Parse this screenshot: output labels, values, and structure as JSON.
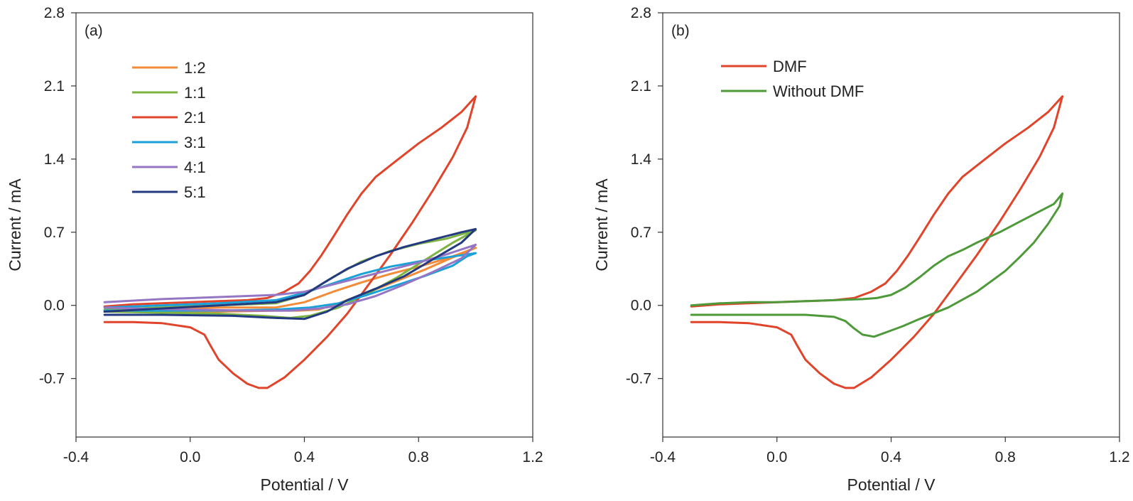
{
  "colors": {
    "orange": "#F28C38",
    "green": "#7CB342",
    "red": "#E0452C",
    "cyan": "#1BA1D8",
    "purple": "#9576C4",
    "navy": "#233A80",
    "darkgreen": "#4E9A3A"
  },
  "chart_data": [
    {
      "type": "line",
      "panel_label": "(a)",
      "xlabel": "Potential / V",
      "ylabel": "Current / mA",
      "xlim": [
        -0.4,
        1.2
      ],
      "ylim": [
        -1.26,
        2.8
      ],
      "xticks": [
        "-0.4",
        "0.0",
        "0.4",
        "0.8",
        "1.2"
      ],
      "yticks": [
        "-0.7",
        "0.0",
        "0.7",
        "1.4",
        "2.1",
        "2.8"
      ],
      "grid": false,
      "legend_position": "top-left",
      "series": [
        {
          "name": "1:2",
          "color_key": "orange",
          "points": [
            [
              -0.3,
              -0.05
            ],
            [
              -0.1,
              -0.03
            ],
            [
              0.1,
              -0.02
            ],
            [
              0.3,
              -0.02
            ],
            [
              0.4,
              0.03
            ],
            [
              0.5,
              0.13
            ],
            [
              0.6,
              0.22
            ],
            [
              0.7,
              0.3
            ],
            [
              0.8,
              0.37
            ],
            [
              0.9,
              0.45
            ],
            [
              1.0,
              0.55
            ],
            [
              0.92,
              0.46
            ],
            [
              0.82,
              0.34
            ],
            [
              0.72,
              0.23
            ],
            [
              0.62,
              0.12
            ],
            [
              0.52,
              0.02
            ],
            [
              0.45,
              -0.04
            ],
            [
              0.38,
              -0.05
            ],
            [
              0.3,
              -0.05
            ],
            [
              0.1,
              -0.06
            ],
            [
              -0.1,
              -0.06
            ],
            [
              -0.3,
              -0.06
            ]
          ]
        },
        {
          "name": "1:1",
          "color_key": "green",
          "points": [
            [
              -0.3,
              -0.04
            ],
            [
              -0.1,
              -0.02
            ],
            [
              0.1,
              0.0
            ],
            [
              0.3,
              0.02
            ],
            [
              0.4,
              0.1
            ],
            [
              0.5,
              0.27
            ],
            [
              0.6,
              0.42
            ],
            [
              0.7,
              0.52
            ],
            [
              0.8,
              0.59
            ],
            [
              0.9,
              0.64
            ],
            [
              1.0,
              0.72
            ],
            [
              0.92,
              0.6
            ],
            [
              0.82,
              0.43
            ],
            [
              0.72,
              0.26
            ],
            [
              0.62,
              0.11
            ],
            [
              0.52,
              -0.02
            ],
            [
              0.42,
              -0.1
            ],
            [
              0.35,
              -0.12
            ],
            [
              0.25,
              -0.1
            ],
            [
              0.1,
              -0.08
            ],
            [
              -0.1,
              -0.07
            ],
            [
              -0.3,
              -0.06
            ]
          ]
        },
        {
          "name": "2:1",
          "color_key": "red",
          "points": [
            [
              -0.3,
              -0.01
            ],
            [
              -0.2,
              0.01
            ],
            [
              -0.1,
              0.02
            ],
            [
              0.0,
              0.03
            ],
            [
              0.1,
              0.04
            ],
            [
              0.2,
              0.05
            ],
            [
              0.27,
              0.07
            ],
            [
              0.33,
              0.13
            ],
            [
              0.38,
              0.21
            ],
            [
              0.42,
              0.33
            ],
            [
              0.46,
              0.48
            ],
            [
              0.5,
              0.65
            ],
            [
              0.55,
              0.87
            ],
            [
              0.6,
              1.07
            ],
            [
              0.65,
              1.23
            ],
            [
              0.72,
              1.38
            ],
            [
              0.8,
              1.55
            ],
            [
              0.88,
              1.7
            ],
            [
              0.95,
              1.85
            ],
            [
              1.0,
              2.0
            ],
            [
              0.97,
              1.7
            ],
            [
              0.92,
              1.42
            ],
            [
              0.85,
              1.1
            ],
            [
              0.78,
              0.8
            ],
            [
              0.7,
              0.48
            ],
            [
              0.62,
              0.18
            ],
            [
              0.55,
              -0.08
            ],
            [
              0.48,
              -0.3
            ],
            [
              0.4,
              -0.52
            ],
            [
              0.33,
              -0.69
            ],
            [
              0.27,
              -0.79
            ],
            [
              0.24,
              -0.79
            ],
            [
              0.2,
              -0.75
            ],
            [
              0.15,
              -0.65
            ],
            [
              0.1,
              -0.52
            ],
            [
              0.07,
              -0.38
            ],
            [
              0.05,
              -0.28
            ],
            [
              0.0,
              -0.21
            ],
            [
              -0.1,
              -0.17
            ],
            [
              -0.2,
              -0.16
            ],
            [
              -0.3,
              -0.16
            ]
          ]
        },
        {
          "name": "3:1",
          "color_key": "cyan",
          "points": [
            [
              -0.3,
              -0.02
            ],
            [
              -0.1,
              0.0
            ],
            [
              0.1,
              0.02
            ],
            [
              0.3,
              0.05
            ],
            [
              0.4,
              0.12
            ],
            [
              0.5,
              0.21
            ],
            [
              0.6,
              0.3
            ],
            [
              0.7,
              0.37
            ],
            [
              0.8,
              0.42
            ],
            [
              0.9,
              0.46
            ],
            [
              1.0,
              0.5
            ],
            [
              0.97,
              0.47
            ],
            [
              0.92,
              0.38
            ],
            [
              0.82,
              0.28
            ],
            [
              0.72,
              0.19
            ],
            [
              0.62,
              0.1
            ],
            [
              0.52,
              0.02
            ],
            [
              0.42,
              -0.02
            ],
            [
              0.3,
              -0.04
            ],
            [
              0.1,
              -0.05
            ],
            [
              -0.1,
              -0.05
            ],
            [
              -0.3,
              -0.05
            ]
          ]
        },
        {
          "name": "4:1",
          "color_key": "purple",
          "points": [
            [
              -0.3,
              0.03
            ],
            [
              -0.1,
              0.06
            ],
            [
              0.1,
              0.08
            ],
            [
              0.3,
              0.1
            ],
            [
              0.4,
              0.13
            ],
            [
              0.5,
              0.2
            ],
            [
              0.6,
              0.27
            ],
            [
              0.7,
              0.34
            ],
            [
              0.8,
              0.41
            ],
            [
              0.9,
              0.49
            ],
            [
              1.0,
              0.58
            ],
            [
              0.95,
              0.45
            ],
            [
              0.85,
              0.32
            ],
            [
              0.75,
              0.2
            ],
            [
              0.65,
              0.09
            ],
            [
              0.55,
              0.01
            ],
            [
              0.45,
              -0.03
            ],
            [
              0.35,
              -0.05
            ],
            [
              0.2,
              -0.05
            ],
            [
              0.0,
              -0.04
            ],
            [
              -0.2,
              -0.03
            ],
            [
              -0.3,
              -0.02
            ]
          ]
        },
        {
          "name": "5:1",
          "color_key": "navy",
          "points": [
            [
              -0.3,
              -0.06
            ],
            [
              -0.1,
              -0.03
            ],
            [
              0.1,
              0.0
            ],
            [
              0.3,
              0.03
            ],
            [
              0.4,
              0.1
            ],
            [
              0.47,
              0.22
            ],
            [
              0.55,
              0.35
            ],
            [
              0.65,
              0.47
            ],
            [
              0.75,
              0.56
            ],
            [
              0.85,
              0.63
            ],
            [
              0.95,
              0.7
            ],
            [
              1.0,
              0.73
            ],
            [
              0.95,
              0.6
            ],
            [
              0.85,
              0.44
            ],
            [
              0.75,
              0.28
            ],
            [
              0.65,
              0.16
            ],
            [
              0.55,
              0.05
            ],
            [
              0.48,
              -0.06
            ],
            [
              0.4,
              -0.13
            ],
            [
              0.3,
              -0.12
            ],
            [
              0.15,
              -0.1
            ],
            [
              -0.1,
              -0.09
            ],
            [
              -0.3,
              -0.09
            ]
          ]
        }
      ]
    },
    {
      "type": "line",
      "panel_label": "(b)",
      "xlabel": "Potential / V",
      "ylabel": "Current / mA",
      "xlim": [
        -0.4,
        1.2
      ],
      "ylim": [
        -1.26,
        2.8
      ],
      "xticks": [
        "-0.4",
        "0.0",
        "0.4",
        "0.8",
        "1.2"
      ],
      "yticks": [
        "-0.7",
        "0.0",
        "0.7",
        "1.4",
        "2.1",
        "2.8"
      ],
      "grid": false,
      "legend_position": "top-left",
      "series": [
        {
          "name": "DMF",
          "color_key": "red",
          "points": [
            [
              -0.3,
              -0.01
            ],
            [
              -0.2,
              0.01
            ],
            [
              -0.1,
              0.02
            ],
            [
              0.0,
              0.03
            ],
            [
              0.1,
              0.04
            ],
            [
              0.2,
              0.05
            ],
            [
              0.27,
              0.07
            ],
            [
              0.33,
              0.13
            ],
            [
              0.38,
              0.21
            ],
            [
              0.42,
              0.33
            ],
            [
              0.46,
              0.48
            ],
            [
              0.5,
              0.65
            ],
            [
              0.55,
              0.87
            ],
            [
              0.6,
              1.07
            ],
            [
              0.65,
              1.23
            ],
            [
              0.72,
              1.38
            ],
            [
              0.8,
              1.55
            ],
            [
              0.88,
              1.7
            ],
            [
              0.95,
              1.85
            ],
            [
              1.0,
              2.0
            ],
            [
              0.97,
              1.7
            ],
            [
              0.92,
              1.42
            ],
            [
              0.85,
              1.1
            ],
            [
              0.78,
              0.8
            ],
            [
              0.7,
              0.48
            ],
            [
              0.62,
              0.18
            ],
            [
              0.55,
              -0.08
            ],
            [
              0.48,
              -0.3
            ],
            [
              0.4,
              -0.52
            ],
            [
              0.33,
              -0.69
            ],
            [
              0.27,
              -0.79
            ],
            [
              0.24,
              -0.79
            ],
            [
              0.2,
              -0.75
            ],
            [
              0.15,
              -0.65
            ],
            [
              0.1,
              -0.52
            ],
            [
              0.07,
              -0.38
            ],
            [
              0.05,
              -0.28
            ],
            [
              0.0,
              -0.21
            ],
            [
              -0.1,
              -0.17
            ],
            [
              -0.2,
              -0.16
            ],
            [
              -0.3,
              -0.16
            ]
          ]
        },
        {
          "name": "Without DMF",
          "color_key": "darkgreen",
          "points": [
            [
              -0.3,
              0.0
            ],
            [
              -0.2,
              0.02
            ],
            [
              -0.1,
              0.03
            ],
            [
              0.0,
              0.03
            ],
            [
              0.1,
              0.04
            ],
            [
              0.2,
              0.05
            ],
            [
              0.3,
              0.06
            ],
            [
              0.35,
              0.07
            ],
            [
              0.4,
              0.1
            ],
            [
              0.45,
              0.17
            ],
            [
              0.5,
              0.27
            ],
            [
              0.55,
              0.38
            ],
            [
              0.6,
              0.47
            ],
            [
              0.65,
              0.53
            ],
            [
              0.7,
              0.6
            ],
            [
              0.78,
              0.7
            ],
            [
              0.85,
              0.8
            ],
            [
              0.92,
              0.9
            ],
            [
              0.97,
              0.97
            ],
            [
              1.0,
              1.07
            ],
            [
              0.99,
              0.95
            ],
            [
              0.95,
              0.78
            ],
            [
              0.9,
              0.6
            ],
            [
              0.85,
              0.46
            ],
            [
              0.8,
              0.33
            ],
            [
              0.7,
              0.13
            ],
            [
              0.6,
              -0.02
            ],
            [
              0.5,
              -0.13
            ],
            [
              0.44,
              -0.2
            ],
            [
              0.38,
              -0.26
            ],
            [
              0.34,
              -0.3
            ],
            [
              0.3,
              -0.28
            ],
            [
              0.27,
              -0.22
            ],
            [
              0.24,
              -0.15
            ],
            [
              0.2,
              -0.11
            ],
            [
              0.1,
              -0.09
            ],
            [
              0.0,
              -0.09
            ],
            [
              -0.1,
              -0.09
            ],
            [
              -0.2,
              -0.09
            ],
            [
              -0.3,
              -0.09
            ]
          ]
        }
      ]
    }
  ]
}
